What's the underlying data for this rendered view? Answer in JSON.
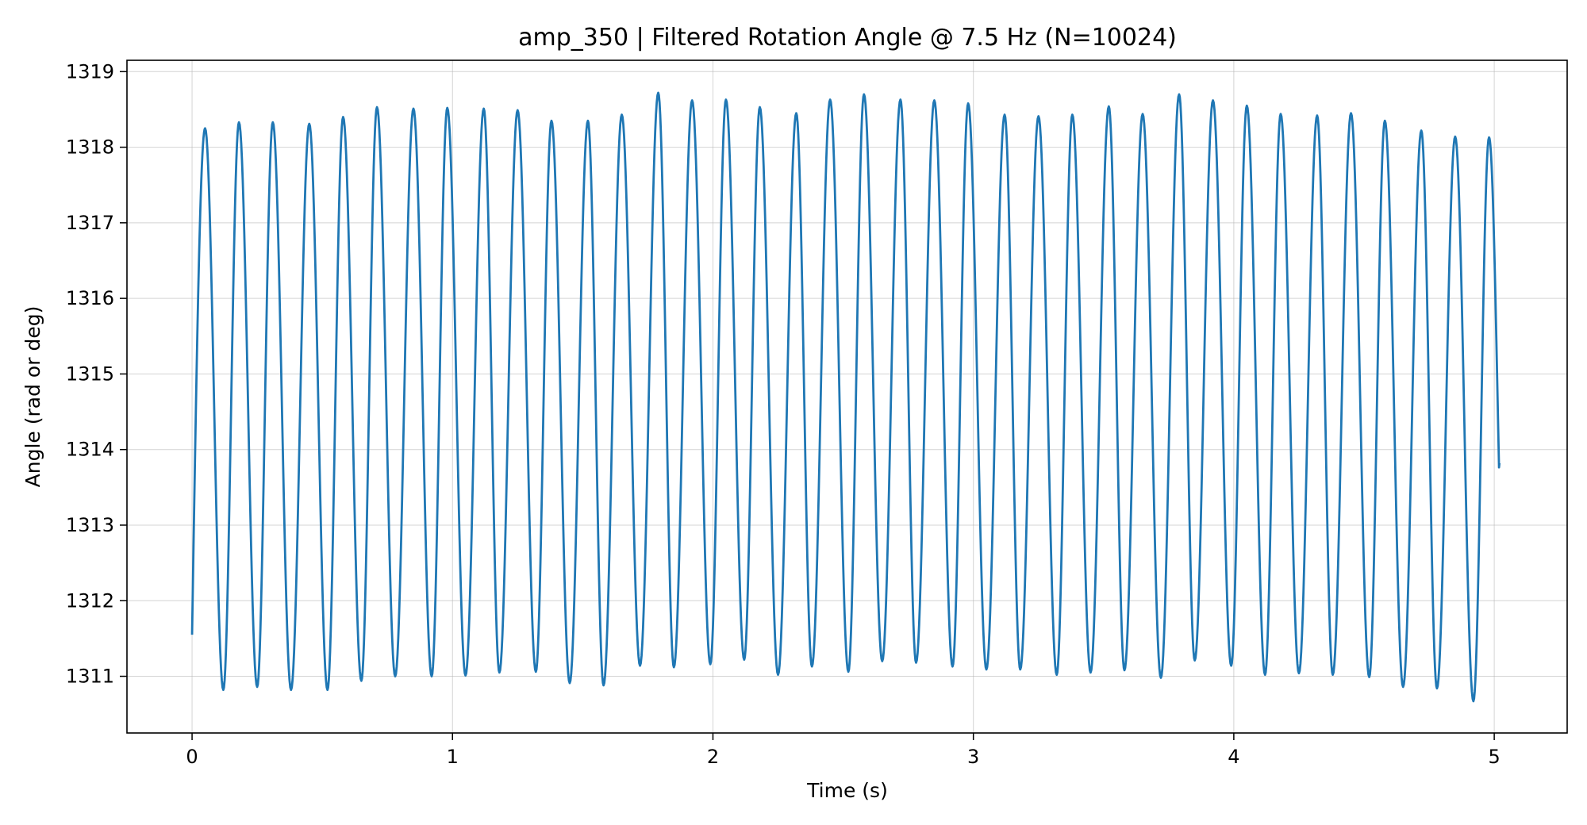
{
  "chart_data": {
    "type": "line",
    "title": "amp_350 | Filtered Rotation Angle @ 7.5 Hz  (N=10024)",
    "xlabel": "Time (s)",
    "ylabel": "Angle (rad or deg)",
    "xlim": [
      -0.25,
      5.28
    ],
    "ylim": [
      1310.25,
      1319.15
    ],
    "xticks": [
      0,
      1,
      2,
      3,
      4,
      5
    ],
    "yticks": [
      1311,
      1312,
      1313,
      1314,
      1315,
      1316,
      1317,
      1318,
      1319
    ],
    "grid": true,
    "line_color": "#1f77b4",
    "series": [
      {
        "start_t": 0.0,
        "start_value": 1311.55,
        "end_t": 5.02,
        "end_value": 1313.82,
        "extrema": [
          [
            0.05,
            1318.25
          ],
          [
            0.12,
            1310.82
          ],
          [
            0.18,
            1318.33
          ],
          [
            0.25,
            1310.86
          ],
          [
            0.31,
            1318.33
          ],
          [
            0.38,
            1310.82
          ],
          [
            0.45,
            1318.31
          ],
          [
            0.52,
            1310.82
          ],
          [
            0.58,
            1318.4
          ],
          [
            0.65,
            1310.94
          ],
          [
            0.71,
            1318.53
          ],
          [
            0.78,
            1311.0
          ],
          [
            0.85,
            1318.51
          ],
          [
            0.92,
            1311.0
          ],
          [
            0.98,
            1318.52
          ],
          [
            1.05,
            1311.01
          ],
          [
            1.12,
            1318.51
          ],
          [
            1.18,
            1311.05
          ],
          [
            1.25,
            1318.49
          ],
          [
            1.32,
            1311.06
          ],
          [
            1.38,
            1318.35
          ],
          [
            1.45,
            1310.91
          ],
          [
            1.52,
            1318.35
          ],
          [
            1.58,
            1310.88
          ],
          [
            1.65,
            1318.43
          ],
          [
            1.72,
            1311.14
          ],
          [
            1.79,
            1318.72
          ],
          [
            1.85,
            1311.12
          ],
          [
            1.92,
            1318.62
          ],
          [
            1.99,
            1311.16
          ],
          [
            2.05,
            1318.63
          ],
          [
            2.12,
            1311.22
          ],
          [
            2.18,
            1318.53
          ],
          [
            2.25,
            1311.02
          ],
          [
            2.32,
            1318.45
          ],
          [
            2.38,
            1311.13
          ],
          [
            2.45,
            1318.63
          ],
          [
            2.52,
            1311.06
          ],
          [
            2.58,
            1318.7
          ],
          [
            2.65,
            1311.2
          ],
          [
            2.72,
            1318.63
          ],
          [
            2.78,
            1311.18
          ],
          [
            2.85,
            1318.62
          ],
          [
            2.92,
            1311.13
          ],
          [
            2.98,
            1318.58
          ],
          [
            3.05,
            1311.09
          ],
          [
            3.12,
            1318.43
          ],
          [
            3.18,
            1311.09
          ],
          [
            3.25,
            1318.41
          ],
          [
            3.32,
            1311.02
          ],
          [
            3.38,
            1318.43
          ],
          [
            3.45,
            1311.05
          ],
          [
            3.52,
            1318.54
          ],
          [
            3.58,
            1311.08
          ],
          [
            3.65,
            1318.44
          ],
          [
            3.72,
            1310.98
          ],
          [
            3.79,
            1318.7
          ],
          [
            3.85,
            1311.21
          ],
          [
            3.92,
            1318.62
          ],
          [
            3.99,
            1311.14
          ],
          [
            4.05,
            1318.55
          ],
          [
            4.12,
            1311.02
          ],
          [
            4.18,
            1318.44
          ],
          [
            4.25,
            1311.04
          ],
          [
            4.32,
            1318.42
          ],
          [
            4.38,
            1311.02
          ],
          [
            4.45,
            1318.45
          ],
          [
            4.52,
            1310.99
          ],
          [
            4.58,
            1318.35
          ],
          [
            4.65,
            1310.86
          ],
          [
            4.72,
            1318.22
          ],
          [
            4.78,
            1310.84
          ],
          [
            4.85,
            1318.14
          ],
          [
            4.92,
            1310.67
          ],
          [
            4.98,
            1318.13
          ]
        ]
      }
    ]
  }
}
